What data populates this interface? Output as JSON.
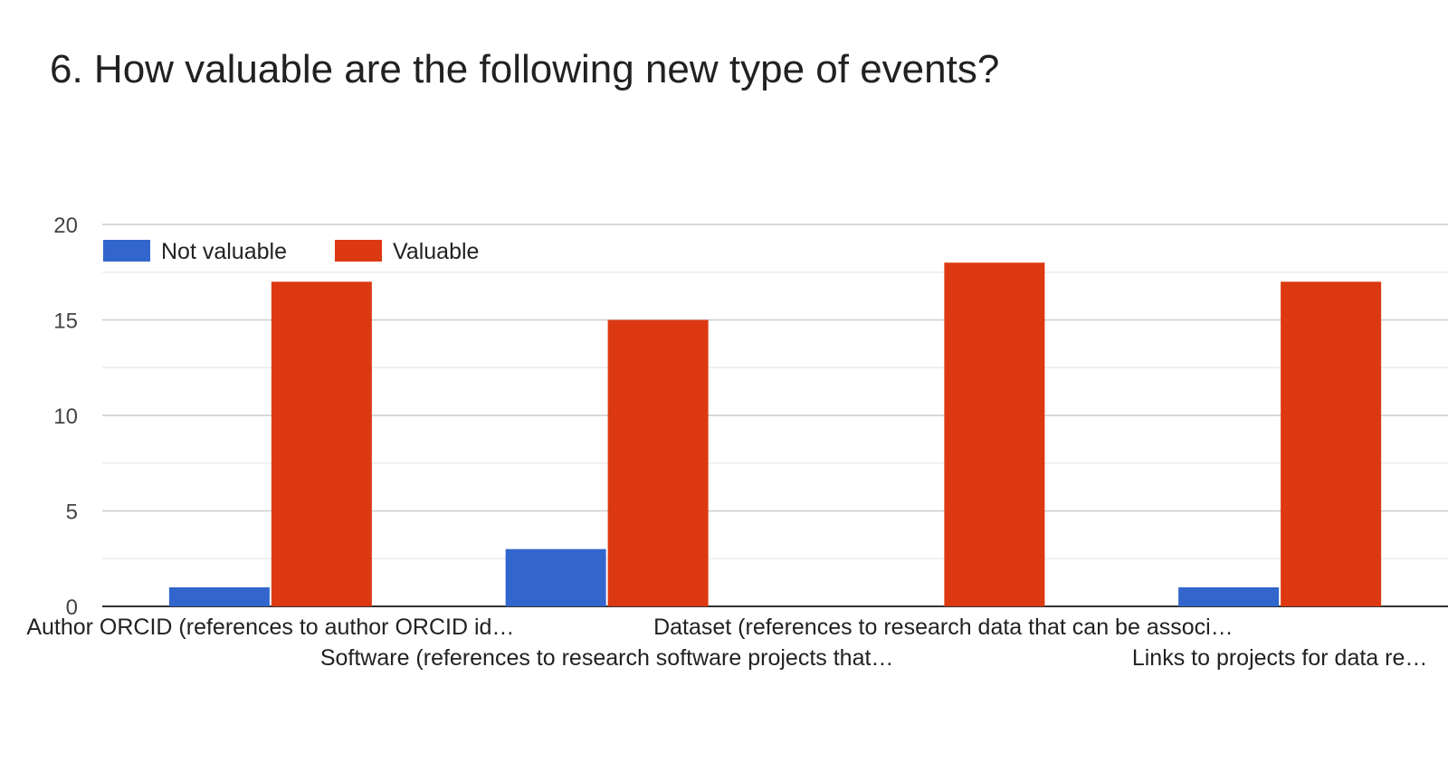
{
  "chart_data": {
    "type": "bar",
    "title": "6. How valuable are the following new type of events?",
    "categories": [
      "Author ORCID (references to author ORCID id…",
      "Software (references to research software projects that…",
      "Dataset (references to research data that can be associ…",
      "Links to projects for data re…"
    ],
    "series": [
      {
        "name": "Not valuable",
        "color": "#3366cc",
        "values": [
          1,
          3,
          0,
          1
        ]
      },
      {
        "name": "Valuable",
        "color": "#dc3912",
        "values": [
          17,
          15,
          18,
          17
        ]
      }
    ],
    "ylim": [
      0,
      20
    ],
    "yticks": [
      0,
      5,
      10,
      15,
      20
    ],
    "grid": true,
    "legend": "top-left"
  }
}
